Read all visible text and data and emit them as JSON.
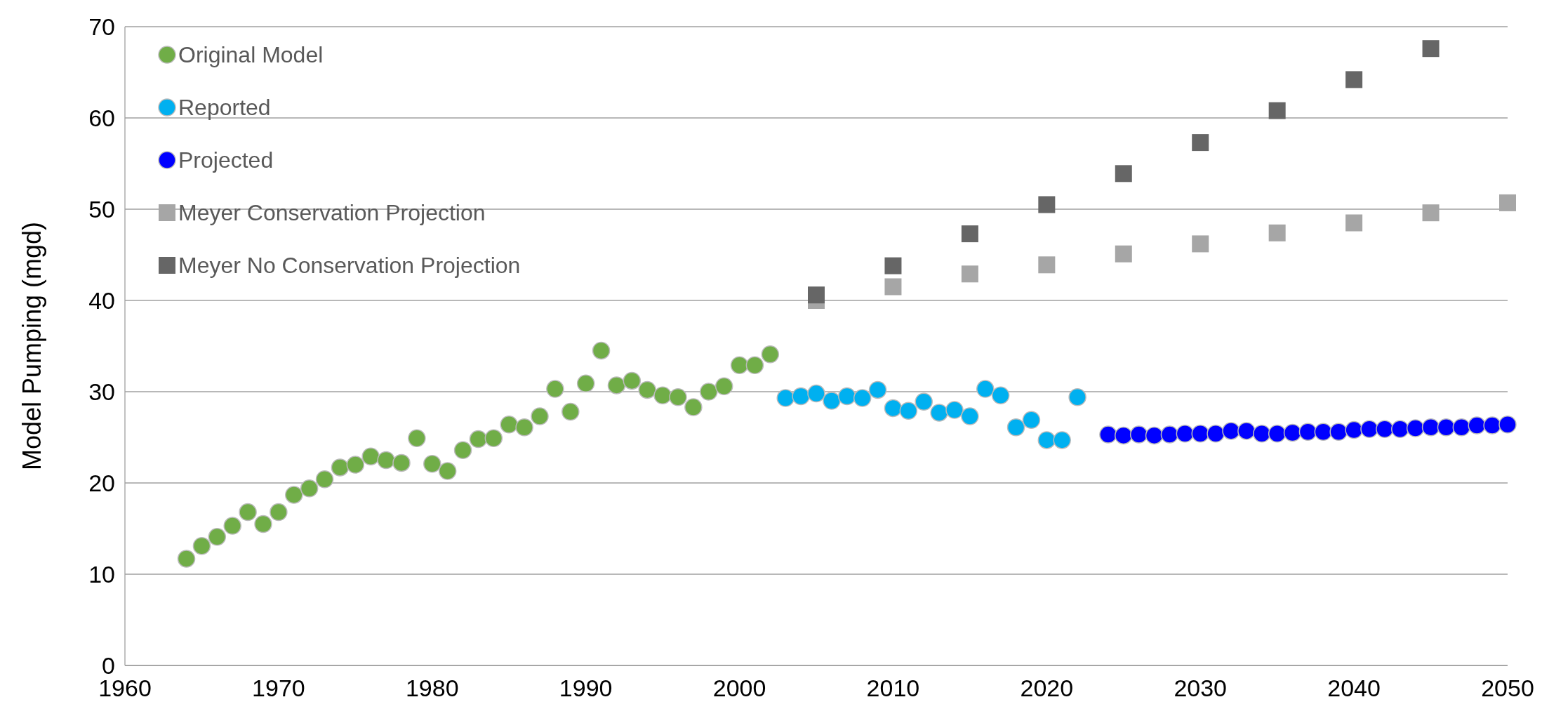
{
  "chart_data": {
    "type": "scatter",
    "ylabel": "Model Pumping (mgd)",
    "xlim": [
      1960,
      2050
    ],
    "xticks": [
      1960,
      1970,
      1980,
      1990,
      2000,
      2010,
      2020,
      2030,
      2040,
      2050
    ],
    "ylim": [
      0,
      70
    ],
    "yticks": [
      0,
      10,
      20,
      30,
      40,
      50,
      60,
      70
    ],
    "grid": "y",
    "legend": "top left",
    "series": [
      {
        "name": "Original Model",
        "color": "#70ad47",
        "marker": "circle",
        "x": [
          1964,
          1965,
          1966,
          1967,
          1968,
          1969,
          1970,
          1971,
          1972,
          1973,
          1974,
          1975,
          1976,
          1977,
          1978,
          1979,
          1980,
          1981,
          1982,
          1983,
          1984,
          1985,
          1986,
          1987,
          1988,
          1989,
          1990,
          1991,
          1992,
          1993,
          1994,
          1995,
          1996,
          1997,
          1998,
          1999,
          2000,
          2001,
          2002
        ],
        "values": [
          11.7,
          13.1,
          14.1,
          15.3,
          16.8,
          15.5,
          16.8,
          18.7,
          19.4,
          20.4,
          21.7,
          22.0,
          22.9,
          22.5,
          22.2,
          24.9,
          22.1,
          21.3,
          23.6,
          24.8,
          24.9,
          26.4,
          26.1,
          27.3,
          30.3,
          27.8,
          30.9,
          34.5,
          30.7,
          31.2,
          30.2,
          29.6,
          29.4,
          28.3,
          30.0,
          30.6,
          32.9,
          32.9,
          34.1
        ]
      },
      {
        "name": "Reported",
        "color": "#00b0f0",
        "marker": "circle",
        "x": [
          2003,
          2004,
          2005,
          2006,
          2007,
          2008,
          2009,
          2010,
          2011,
          2012,
          2013,
          2014,
          2015,
          2016,
          2017,
          2018,
          2019,
          2020,
          2021,
          2022
        ],
        "values": [
          29.3,
          29.5,
          29.8,
          29.0,
          29.5,
          29.3,
          30.2,
          28.2,
          27.9,
          28.9,
          27.7,
          28.0,
          27.3,
          30.3,
          29.6,
          26.1,
          26.9,
          24.7,
          24.7,
          29.4
        ]
      },
      {
        "name": "Projected",
        "color": "#0000ff",
        "marker": "circle",
        "x": [
          2024,
          2025,
          2026,
          2027,
          2028,
          2029,
          2030,
          2031,
          2032,
          2033,
          2034,
          2035,
          2036,
          2037,
          2038,
          2039,
          2040,
          2041,
          2042,
          2043,
          2044,
          2045,
          2046,
          2047,
          2048,
          2049,
          2050
        ],
        "values": [
          25.3,
          25.2,
          25.3,
          25.2,
          25.3,
          25.4,
          25.4,
          25.4,
          25.7,
          25.7,
          25.4,
          25.4,
          25.5,
          25.6,
          25.6,
          25.6,
          25.8,
          25.9,
          25.9,
          25.9,
          26.0,
          26.1,
          26.1,
          26.1,
          26.3,
          26.3,
          26.4
        ]
      },
      {
        "name": "Meyer Conservation Projection",
        "color": "#a6a6a6",
        "marker": "square",
        "x": [
          2005,
          2010,
          2015,
          2020,
          2025,
          2030,
          2035,
          2040,
          2045,
          2050
        ],
        "values": [
          40.0,
          41.5,
          42.9,
          43.9,
          45.1,
          46.2,
          47.4,
          48.5,
          49.6,
          50.7
        ]
      },
      {
        "name": "Meyer No Conservation Projection",
        "color": "#666666",
        "marker": "square",
        "x": [
          2005,
          2010,
          2015,
          2020,
          2025,
          2030,
          2035,
          2040,
          2045
        ],
        "values": [
          40.6,
          43.8,
          47.3,
          50.5,
          53.9,
          57.3,
          60.8,
          64.2,
          67.6
        ]
      }
    ]
  }
}
